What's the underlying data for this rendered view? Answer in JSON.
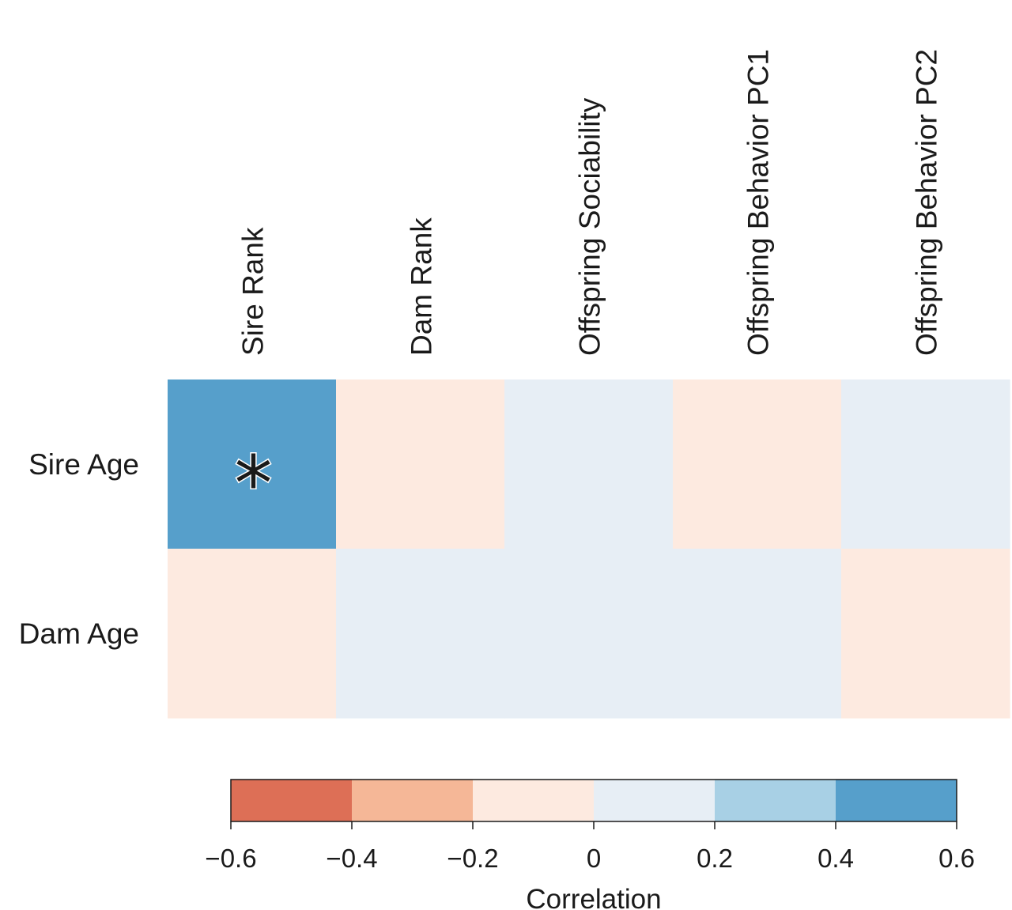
{
  "chart_data": {
    "type": "heatmap",
    "columns": [
      "Sire Rank",
      "Dam Rank",
      "Offspring Sociability",
      "Offspring Behavior PC1",
      "Offspring Behavior PC2"
    ],
    "rows": [
      "Sire Age",
      "Dam Age"
    ],
    "values": [
      [
        0.5,
        -0.1,
        0.1,
        -0.1,
        0.1
      ],
      [
        -0.1,
        0.1,
        0.1,
        0.1,
        -0.1
      ]
    ],
    "significance": [
      [
        "*",
        "",
        "",
        "",
        ""
      ],
      [
        "",
        "",
        "",
        "",
        ""
      ]
    ],
    "colorbar": {
      "label": "Correlation",
      "range": [
        -0.6,
        0.6
      ],
      "ticks": [
        "−0.6",
        "−0.4",
        "−0.2",
        "0",
        "0.2",
        "0.4",
        "0.6"
      ],
      "bins": [
        {
          "from": -0.6,
          "to": -0.4,
          "color": "#dd6f56"
        },
        {
          "from": -0.4,
          "to": -0.2,
          "color": "#f5b797"
        },
        {
          "from": -0.2,
          "to": 0.0,
          "color": "#fdeae0"
        },
        {
          "from": 0.0,
          "to": 0.2,
          "color": "#e7eef5"
        },
        {
          "from": 0.2,
          "to": 0.4,
          "color": "#a8d0e5"
        },
        {
          "from": 0.4,
          "to": 0.6,
          "color": "#569fcb"
        }
      ]
    }
  }
}
